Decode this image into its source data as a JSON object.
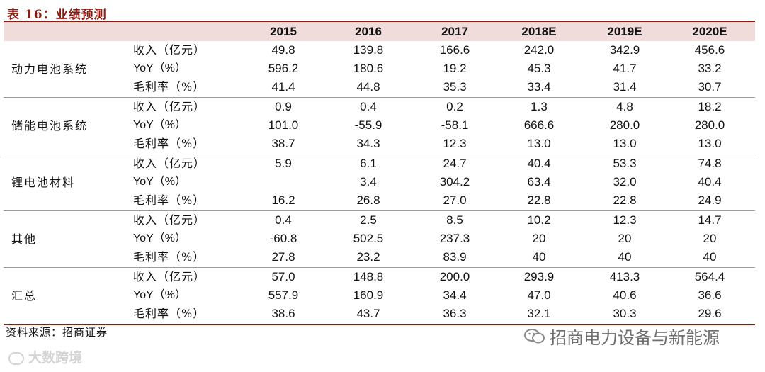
{
  "title": "表 16：业绩预测",
  "years": [
    "2015",
    "2016",
    "2017",
    "2018E",
    "2019E",
    "2020E"
  ],
  "segments": [
    {
      "name": "动力电池系统",
      "rows": [
        {
          "metric": "收入（亿元）",
          "values": [
            "49.8",
            "139.8",
            "166.6",
            "242.0",
            "342.9",
            "456.6"
          ]
        },
        {
          "metric": "YoY（%）",
          "values": [
            "596.2",
            "180.6",
            "19.2",
            "45.3",
            "41.7",
            "33.2"
          ]
        },
        {
          "metric": "毛利率（%）",
          "values": [
            "41.4",
            "44.8",
            "35.3",
            "33.4",
            "31.4",
            "30.7"
          ]
        }
      ]
    },
    {
      "name": "储能电池系统",
      "rows": [
        {
          "metric": "收入（亿元）",
          "values": [
            "0.9",
            "0.4",
            "0.2",
            "1.3",
            "4.8",
            "18.2"
          ]
        },
        {
          "metric": "YoY（%）",
          "values": [
            "101.0",
            "-55.9",
            "-58.1",
            "666.6",
            "280.0",
            "280.0"
          ]
        },
        {
          "metric": "毛利率（%）",
          "values": [
            "38.7",
            "34.3",
            "12.3",
            "13.0",
            "13.0",
            "13.0"
          ]
        }
      ]
    },
    {
      "name": "锂电池材料",
      "rows": [
        {
          "metric": "收入（亿元）",
          "values": [
            "5.9",
            "6.1",
            "24.7",
            "40.4",
            "53.3",
            "74.8"
          ]
        },
        {
          "metric": "YoY（%）",
          "values": [
            "",
            "3.4",
            "304.2",
            "63.4",
            "32.0",
            "40.4"
          ]
        },
        {
          "metric": "毛利率（%）",
          "values": [
            "16.2",
            "26.8",
            "27.0",
            "22.8",
            "22.8",
            "24.9"
          ]
        }
      ]
    },
    {
      "name": "其他",
      "rows": [
        {
          "metric": "收入（亿元）",
          "values": [
            "0.4",
            "2.5",
            "8.5",
            "10.2",
            "12.3",
            "14.7"
          ]
        },
        {
          "metric": "YoY（%）",
          "values": [
            "-60.8",
            "502.5",
            "237.3",
            "20",
            "20",
            "20"
          ]
        },
        {
          "metric": "毛利率（%）",
          "values": [
            "27.8",
            "23.2",
            "83.9",
            "40",
            "40",
            "40"
          ]
        }
      ]
    },
    {
      "name": "汇总",
      "rows": [
        {
          "metric": "收入（亿元）",
          "values": [
            "57.0",
            "148.8",
            "200.0",
            "293.9",
            "413.3",
            "564.4"
          ]
        },
        {
          "metric": "YoY（%）",
          "values": [
            "557.9",
            "160.9",
            "34.4",
            "47.0",
            "40.6",
            "36.6"
          ]
        },
        {
          "metric": "毛利率（%）",
          "values": [
            "38.6",
            "43.7",
            "36.3",
            "32.1",
            "30.3",
            "29.6"
          ]
        }
      ]
    }
  ],
  "source": "资料来源：招商证券",
  "watermark_left": "大数跨境",
  "watermark_right": "招商电力设备与新能源",
  "colors": {
    "title": "#8b1a10",
    "header_bg": "#f0dcda",
    "rule": "#8b1a10"
  }
}
